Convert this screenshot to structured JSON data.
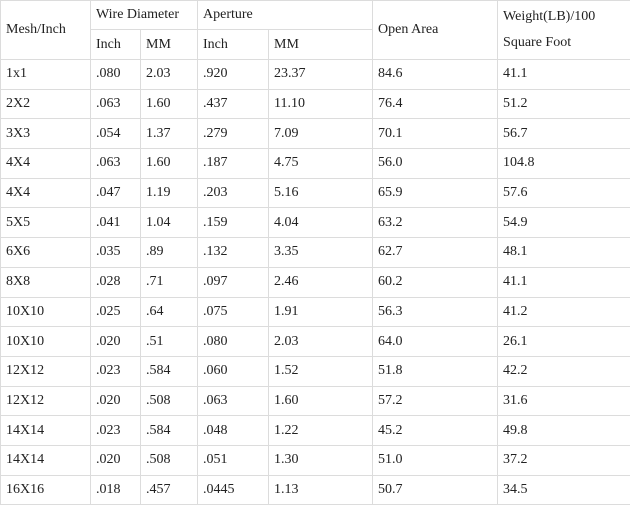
{
  "header": {
    "mesh": "Mesh/Inch",
    "wire_diameter": "Wire Diameter",
    "aperture": "Aperture",
    "open_area": "Open Area",
    "weight": [
      "Weight(LB)/100",
      "Square Foot"
    ],
    "sub": [
      "Inch",
      "MM",
      "Inch",
      "MM"
    ]
  },
  "table": {
    "rows": [
      [
        "1x1",
        ".080",
        "2.03",
        ".920",
        "23.37",
        "84.6",
        "41.1"
      ],
      [
        "2X2",
        ".063",
        "1.60",
        ".437",
        "11.10",
        "76.4",
        "51.2"
      ],
      [
        "3X3",
        ".054",
        "1.37",
        ".279",
        "7.09",
        "70.1",
        "56.7"
      ],
      [
        "4X4",
        ".063",
        "1.60",
        ".187",
        "4.75",
        "56.0",
        "104.8"
      ],
      [
        "4X4",
        ".047",
        "1.19",
        ".203",
        "5.16",
        "65.9",
        "57.6"
      ],
      [
        "5X5",
        ".041",
        "1.04",
        ".159",
        "4.04",
        "63.2",
        "54.9"
      ],
      [
        "6X6",
        ".035",
        ".89",
        ".132",
        "3.35",
        "62.7",
        "48.1"
      ],
      [
        "8X8",
        ".028",
        ".71",
        ".097",
        "2.46",
        "60.2",
        "41.1"
      ],
      [
        "10X10",
        ".025",
        ".64",
        ".075",
        "1.91",
        "56.3",
        "41.2"
      ],
      [
        "10X10",
        ".020",
        ".51",
        ".080",
        "2.03",
        "64.0",
        "26.1"
      ],
      [
        "12X12",
        ".023",
        ".584",
        ".060",
        "1.52",
        "51.8",
        "42.2"
      ],
      [
        "12X12",
        ".020",
        ".508",
        ".063",
        "1.60",
        "57.2",
        "31.6"
      ],
      [
        "14X14",
        ".023",
        ".584",
        ".048",
        "1.22",
        "45.2",
        "49.8"
      ],
      [
        "14X14",
        ".020",
        ".508",
        ".051",
        "1.30",
        "51.0",
        "37.2"
      ],
      [
        "16X16",
        ".018",
        ".457",
        ".0445",
        "1.13",
        "50.7",
        "34.5"
      ]
    ]
  }
}
